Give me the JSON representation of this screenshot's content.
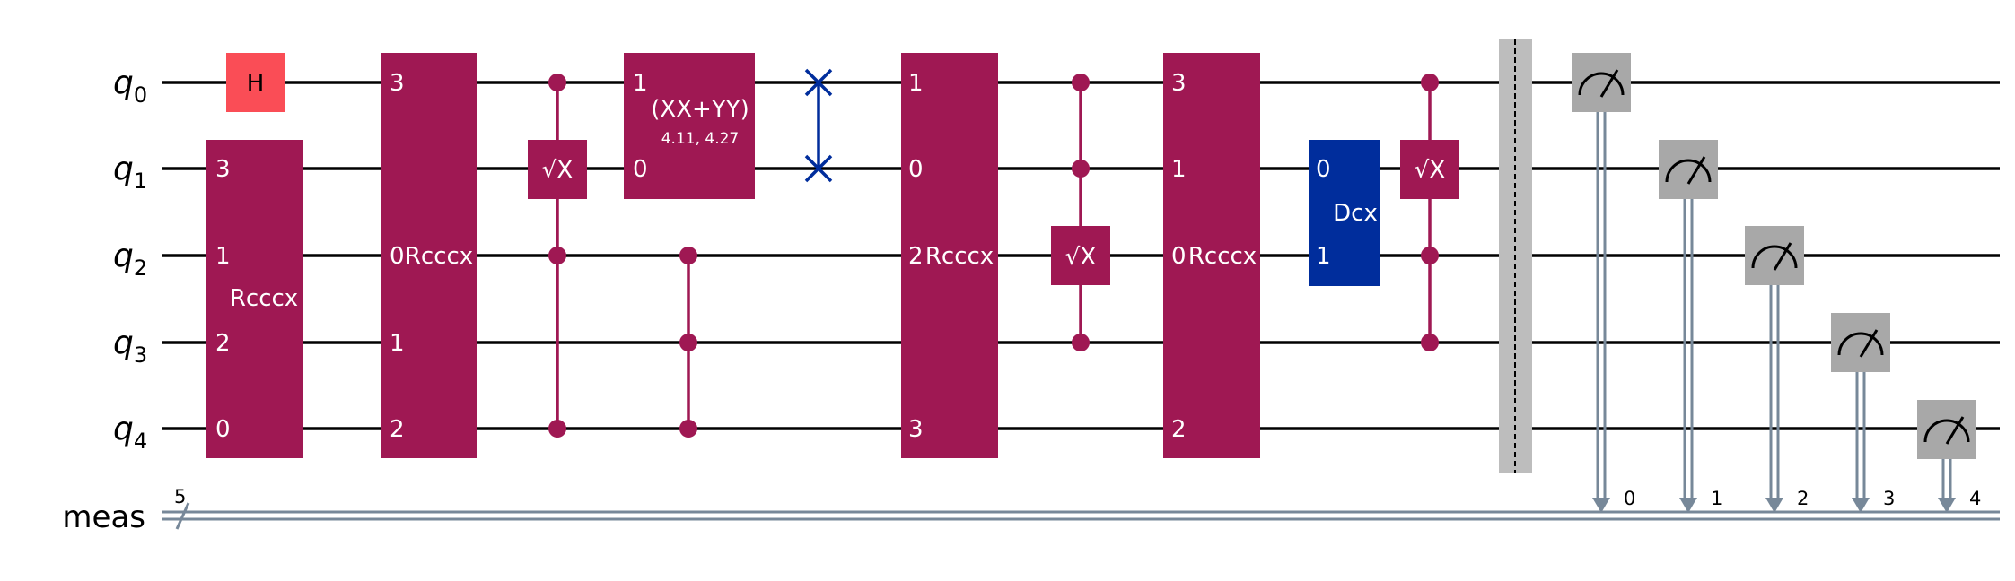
{
  "qubits": [
    {
      "name": "q",
      "index": "0"
    },
    {
      "name": "q",
      "index": "1"
    },
    {
      "name": "q",
      "index": "2"
    },
    {
      "name": "q",
      "index": "3"
    },
    {
      "name": "q",
      "index": "4"
    }
  ],
  "classical": {
    "name": "meas",
    "width": "5"
  },
  "gates": {
    "h": "H",
    "rcccx": "Rcccx",
    "sqrtx": "√X",
    "xxyy": "(XX+YY)",
    "xxyy_params": "4.11, 4.27",
    "dcx": "Dcx"
  },
  "ports": {
    "g1": {
      "q1": "3",
      "q2": "1",
      "q3": "2",
      "q4": "0"
    },
    "g2": {
      "q0": "3",
      "q2": "0",
      "q3": "1",
      "q4": "2"
    },
    "xxyy": {
      "q0": "1",
      "q1": "0"
    },
    "g6": {
      "q0": "1",
      "q1": "0",
      "q2": "2",
      "q4": "3"
    },
    "g8": {
      "q0": "3",
      "q1": "1",
      "q2": "0",
      "q4": "2"
    },
    "dcx": {
      "q1": "0",
      "q2": "1"
    }
  },
  "measure_bits": [
    "0",
    "1",
    "2",
    "3",
    "4"
  ],
  "colors": {
    "h": "#FA4D56",
    "multi": "#9F1853",
    "swap": "#002D9C",
    "dcx": "#002D9C",
    "measure": "#A8A8A8",
    "classical": "#778899",
    "barrier": "#BDBDBD"
  }
}
